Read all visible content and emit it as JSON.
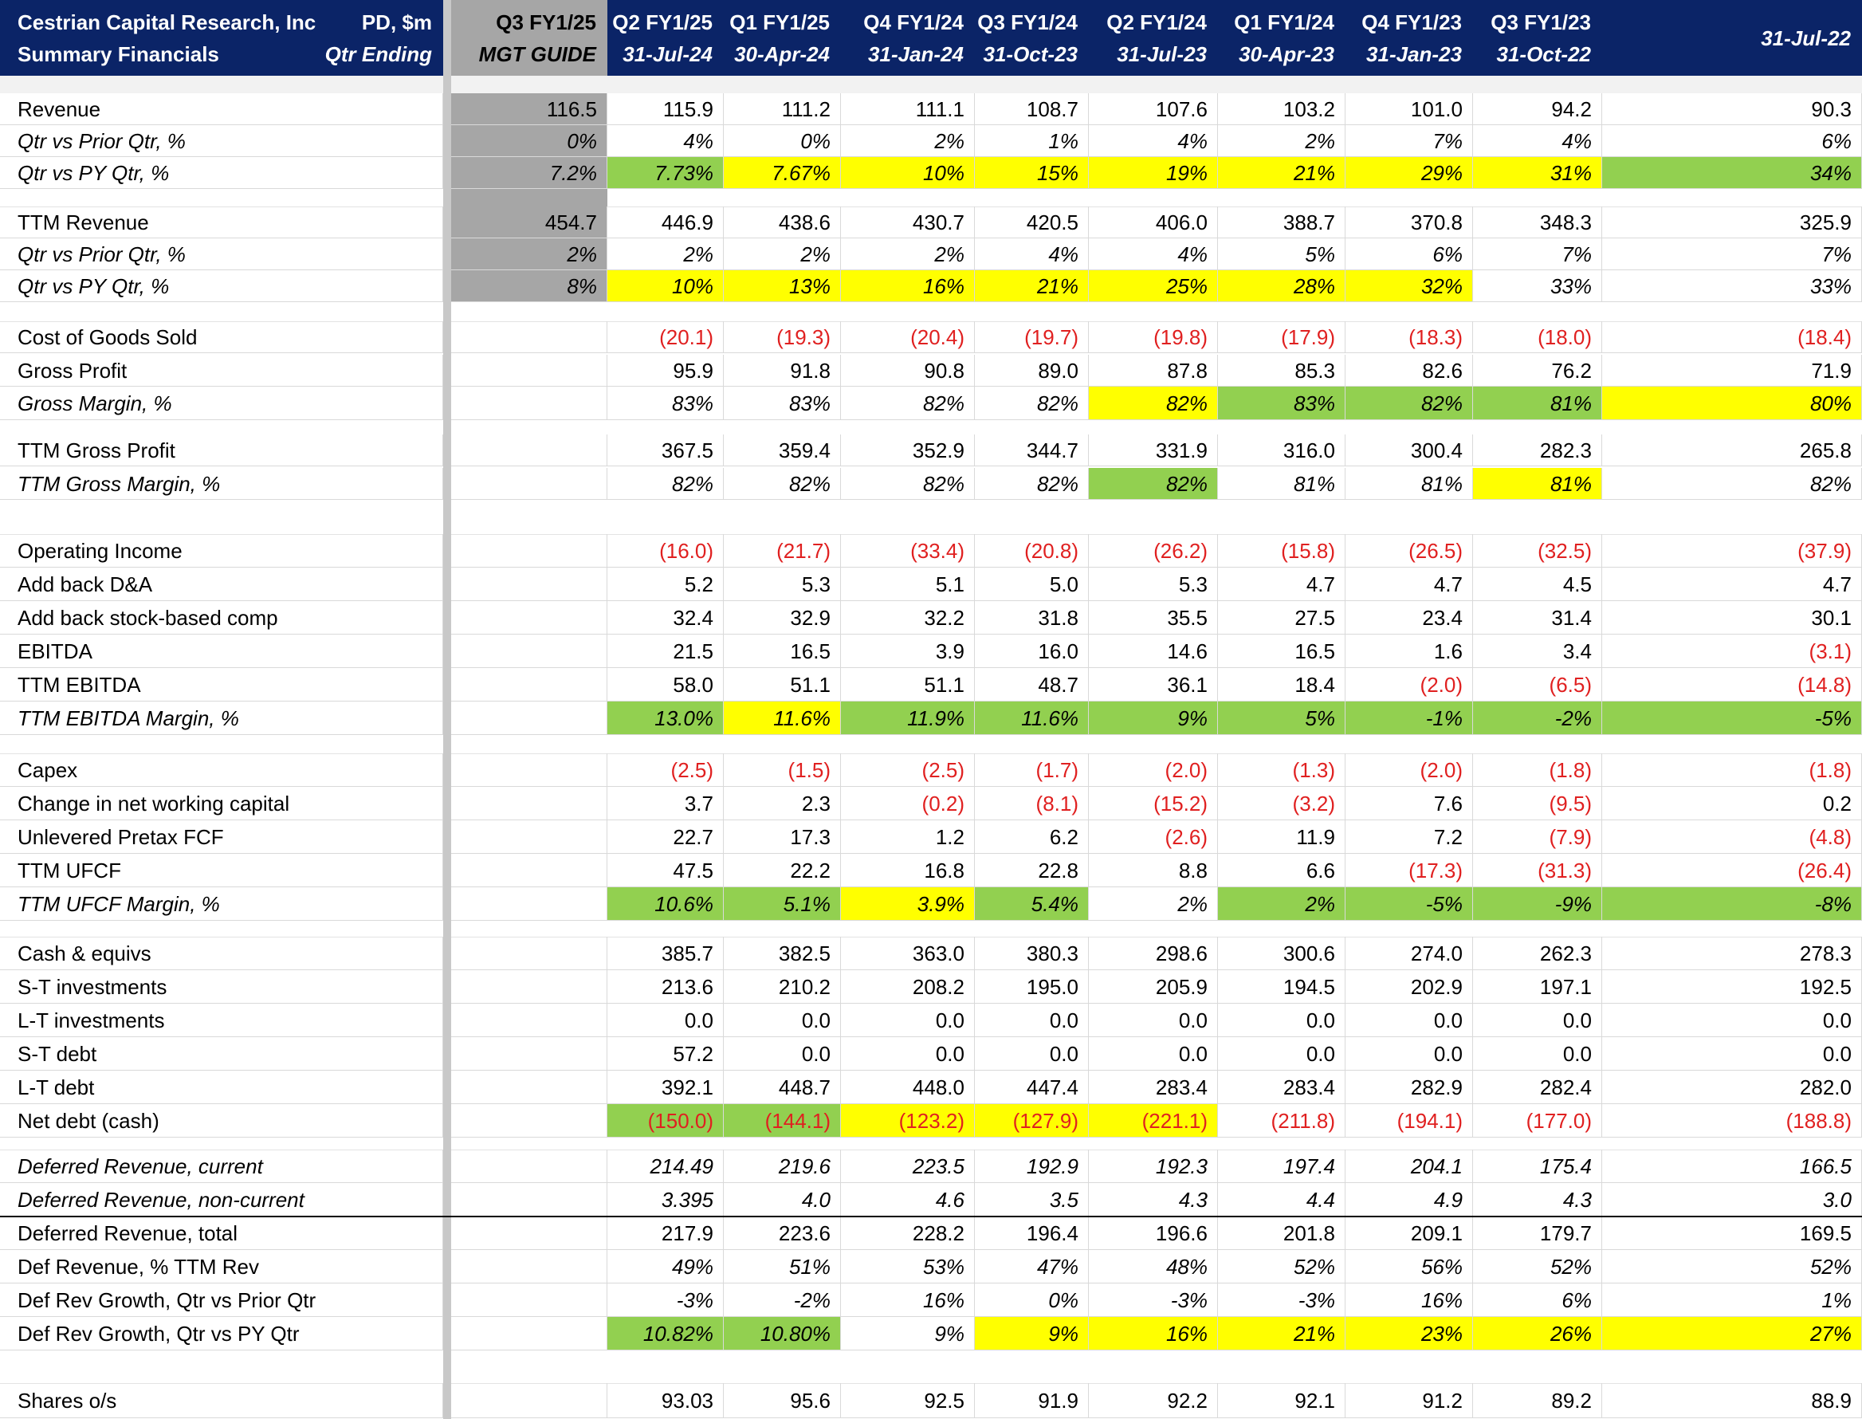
{
  "header": {
    "title_line1": "Cestrian Capital Research, Inc",
    "title_line2": "Summary Financials",
    "units_line1": "PD, $m",
    "units_line2": "Qtr Ending",
    "columns": [
      {
        "l1": "Q3 FY1/25",
        "l2": "MGT GUIDE"
      },
      {
        "l1": "Q2 FY1/25",
        "l2": "31-Jul-24"
      },
      {
        "l1": "Q1 FY1/25",
        "l2": "30-Apr-24"
      },
      {
        "l1": "Q4 FY1/24",
        "l2": "31-Jan-24"
      },
      {
        "l1": "Q3 FY1/24",
        "l2": "31-Oct-23"
      },
      {
        "l1": "Q2 FY1/24",
        "l2": "31-Jul-23"
      },
      {
        "l1": "Q1 FY1/24",
        "l2": "30-Apr-23"
      },
      {
        "l1": "Q4 FY1/23",
        "l2": "31-Jan-23"
      },
      {
        "l1": "Q3 FY1/23",
        "l2": "31-Oct-22"
      },
      {
        "l1": "",
        "l2": "31-Jul-22"
      }
    ]
  },
  "colors": {
    "header_bg": "#0b2467",
    "guide_bg": "#a6a6a6",
    "highlight_green": "#92d050",
    "highlight_yellow": "#ffff00",
    "negative_text": "#e02020"
  },
  "rows": [
    {
      "label": "Revenue",
      "italic": false,
      "values": [
        "116.5",
        "115.9",
        "111.2",
        "111.1",
        "108.7",
        "107.6",
        "103.2",
        "101.0",
        "94.2",
        "90.3"
      ],
      "bg": [
        "",
        "",
        "",
        "",
        "",
        "",
        "",
        "",
        "",
        ""
      ]
    },
    {
      "label": "Qtr vs Prior Qtr, %",
      "italic": true,
      "values": [
        "0%",
        "4%",
        "0%",
        "2%",
        "1%",
        "4%",
        "2%",
        "7%",
        "4%",
        "6%"
      ],
      "bg": [
        "",
        "",
        "",
        "",
        "",
        "",
        "",
        "",
        "",
        ""
      ]
    },
    {
      "label": "Qtr vs PY Qtr, %",
      "italic": true,
      "values": [
        "7.2%",
        "7.73%",
        "7.67%",
        "10%",
        "15%",
        "19%",
        "21%",
        "29%",
        "31%",
        "34%"
      ],
      "bg": [
        "",
        "g",
        "y",
        "y",
        "y",
        "y",
        "y",
        "y",
        "y",
        "g"
      ]
    },
    {
      "label": "TTM Revenue",
      "italic": false,
      "values": [
        "454.7",
        "446.9",
        "438.6",
        "430.7",
        "420.5",
        "406.0",
        "388.7",
        "370.8",
        "348.3",
        "325.9"
      ],
      "bg": [
        "",
        "",
        "",
        "",
        "",
        "",
        "",
        "",
        "",
        ""
      ]
    },
    {
      "label": "Qtr vs Prior Qtr, %",
      "italic": true,
      "values": [
        "2%",
        "2%",
        "2%",
        "2%",
        "4%",
        "4%",
        "5%",
        "6%",
        "7%",
        "7%"
      ],
      "bg": [
        "",
        "",
        "",
        "",
        "",
        "",
        "",
        "",
        "",
        ""
      ]
    },
    {
      "label": "Qtr vs PY Qtr, %",
      "italic": true,
      "values": [
        "8%",
        "10%",
        "13%",
        "16%",
        "21%",
        "25%",
        "28%",
        "32%",
        "33%",
        "33%"
      ],
      "bg": [
        "",
        "y",
        "y",
        "y",
        "y",
        "y",
        "y",
        "y",
        "",
        ""
      ]
    },
    {
      "label": "Cost of Goods Sold",
      "italic": false,
      "values": [
        "",
        "(20.1)",
        "(19.3)",
        "(20.4)",
        "(19.7)",
        "(19.8)",
        "(17.9)",
        "(18.3)",
        "(18.0)",
        "(18.4)"
      ],
      "bg": [
        "",
        "",
        "",
        "",
        "",
        "",
        "",
        "",
        "",
        ""
      ]
    },
    {
      "label": "Gross Profit",
      "italic": false,
      "values": [
        "",
        "95.9",
        "91.8",
        "90.8",
        "89.0",
        "87.8",
        "85.3",
        "82.6",
        "76.2",
        "71.9"
      ],
      "bg": [
        "",
        "",
        "",
        "",
        "",
        "",
        "",
        "",
        "",
        ""
      ]
    },
    {
      "label": "Gross Margin, %",
      "italic": true,
      "values": [
        "",
        "83%",
        "83%",
        "82%",
        "82%",
        "82%",
        "83%",
        "82%",
        "81%",
        "80%"
      ],
      "bg": [
        "",
        "",
        "",
        "",
        "",
        "y",
        "g",
        "g",
        "g",
        "y"
      ]
    },
    {
      "label": "TTM Gross Profit",
      "italic": false,
      "values": [
        "",
        "367.5",
        "359.4",
        "352.9",
        "344.7",
        "331.9",
        "316.0",
        "300.4",
        "282.3",
        "265.8"
      ],
      "bg": [
        "",
        "",
        "",
        "",
        "",
        "",
        "",
        "",
        "",
        ""
      ]
    },
    {
      "label": "TTM Gross Margin, %",
      "italic": true,
      "values": [
        "",
        "82%",
        "82%",
        "82%",
        "82%",
        "82%",
        "81%",
        "81%",
        "81%",
        "82%"
      ],
      "bg": [
        "",
        "",
        "",
        "",
        "",
        "g",
        "",
        "",
        "y",
        ""
      ]
    },
    {
      "label": "Operating Income",
      "italic": false,
      "values": [
        "",
        "(16.0)",
        "(21.7)",
        "(33.4)",
        "(20.8)",
        "(26.2)",
        "(15.8)",
        "(26.5)",
        "(32.5)",
        "(37.9)"
      ],
      "bg": [
        "",
        "",
        "",
        "",
        "",
        "",
        "",
        "",
        "",
        ""
      ]
    },
    {
      "label": "Add back D&A",
      "italic": false,
      "values": [
        "",
        "5.2",
        "5.3",
        "5.1",
        "5.0",
        "5.3",
        "4.7",
        "4.7",
        "4.5",
        "4.7"
      ],
      "bg": [
        "",
        "",
        "",
        "",
        "",
        "",
        "",
        "",
        "",
        ""
      ]
    },
    {
      "label": "Add back stock-based comp",
      "italic": false,
      "values": [
        "",
        "32.4",
        "32.9",
        "32.2",
        "31.8",
        "35.5",
        "27.5",
        "23.4",
        "31.4",
        "30.1"
      ],
      "bg": [
        "",
        "",
        "",
        "",
        "",
        "",
        "",
        "",
        "",
        ""
      ]
    },
    {
      "label": "EBITDA",
      "italic": false,
      "values": [
        "",
        "21.5",
        "16.5",
        "3.9",
        "16.0",
        "14.6",
        "16.5",
        "1.6",
        "3.4",
        "(3.1)"
      ],
      "bg": [
        "",
        "",
        "",
        "",
        "",
        "",
        "",
        "",
        "",
        ""
      ]
    },
    {
      "label": "TTM EBITDA",
      "italic": false,
      "values": [
        "",
        "58.0",
        "51.1",
        "51.1",
        "48.7",
        "36.1",
        "18.4",
        "(2.0)",
        "(6.5)",
        "(14.8)"
      ],
      "bg": [
        "",
        "",
        "",
        "",
        "",
        "",
        "",
        "",
        "",
        ""
      ]
    },
    {
      "label": "TTM EBITDA Margin, %",
      "italic": true,
      "values": [
        "",
        "13.0%",
        "11.6%",
        "11.9%",
        "11.6%",
        "9%",
        "5%",
        "-1%",
        "-2%",
        "-5%"
      ],
      "bg": [
        "",
        "g",
        "y",
        "g",
        "g",
        "g",
        "g",
        "g",
        "g",
        "g"
      ]
    },
    {
      "label": "Capex",
      "italic": false,
      "values": [
        "",
        "(2.5)",
        "(1.5)",
        "(2.5)",
        "(1.7)",
        "(2.0)",
        "(1.3)",
        "(2.0)",
        "(1.8)",
        "(1.8)"
      ],
      "bg": [
        "",
        "",
        "",
        "",
        "",
        "",
        "",
        "",
        "",
        ""
      ]
    },
    {
      "label": "Change in net working capital",
      "italic": false,
      "values": [
        "",
        "3.7",
        "2.3",
        "(0.2)",
        "(8.1)",
        "(15.2)",
        "(3.2)",
        "7.6",
        "(9.5)",
        "0.2"
      ],
      "bg": [
        "",
        "",
        "",
        "",
        "",
        "",
        "",
        "",
        "",
        ""
      ]
    },
    {
      "label": "Unlevered Pretax FCF",
      "italic": false,
      "values": [
        "",
        "22.7",
        "17.3",
        "1.2",
        "6.2",
        "(2.6)",
        "11.9",
        "7.2",
        "(7.9)",
        "(4.8)"
      ],
      "bg": [
        "",
        "",
        "",
        "",
        "",
        "",
        "",
        "",
        "",
        ""
      ]
    },
    {
      "label": "TTM UFCF",
      "italic": false,
      "values": [
        "",
        "47.5",
        "22.2",
        "16.8",
        "22.8",
        "8.8",
        "6.6",
        "(17.3)",
        "(31.3)",
        "(26.4)"
      ],
      "bg": [
        "",
        "",
        "",
        "",
        "",
        "",
        "",
        "",
        "",
        ""
      ]
    },
    {
      "label": "TTM UFCF Margin, %",
      "italic": true,
      "values": [
        "",
        "10.6%",
        "5.1%",
        "3.9%",
        "5.4%",
        "2%",
        "2%",
        "-5%",
        "-9%",
        "-8%"
      ],
      "bg": [
        "",
        "g",
        "g",
        "y",
        "g",
        "",
        "g",
        "g",
        "g",
        "g"
      ]
    },
    {
      "label": "Cash & equivs",
      "italic": false,
      "values": [
        "",
        "385.7",
        "382.5",
        "363.0",
        "380.3",
        "298.6",
        "300.6",
        "274.0",
        "262.3",
        "278.3"
      ],
      "bg": [
        "",
        "",
        "",
        "",
        "",
        "",
        "",
        "",
        "",
        ""
      ]
    },
    {
      "label": "S-T investments",
      "italic": false,
      "values": [
        "",
        "213.6",
        "210.2",
        "208.2",
        "195.0",
        "205.9",
        "194.5",
        "202.9",
        "197.1",
        "192.5"
      ],
      "bg": [
        "",
        "",
        "",
        "",
        "",
        "",
        "",
        "",
        "",
        ""
      ]
    },
    {
      "label": "L-T investments",
      "italic": false,
      "values": [
        "",
        "0.0",
        "0.0",
        "0.0",
        "0.0",
        "0.0",
        "0.0",
        "0.0",
        "0.0",
        "0.0"
      ],
      "bg": [
        "",
        "",
        "",
        "",
        "",
        "",
        "",
        "",
        "",
        ""
      ]
    },
    {
      "label": "S-T debt",
      "italic": false,
      "values": [
        "",
        "57.2",
        "0.0",
        "0.0",
        "0.0",
        "0.0",
        "0.0",
        "0.0",
        "0.0",
        "0.0"
      ],
      "bg": [
        "",
        "",
        "",
        "",
        "",
        "",
        "",
        "",
        "",
        ""
      ]
    },
    {
      "label": "L-T debt",
      "italic": false,
      "values": [
        "",
        "392.1",
        "448.7",
        "448.0",
        "447.4",
        "283.4",
        "283.4",
        "282.9",
        "282.4",
        "282.0"
      ],
      "bg": [
        "",
        "",
        "",
        "",
        "",
        "",
        "",
        "",
        "",
        ""
      ]
    },
    {
      "label": "Net debt (cash)",
      "italic": false,
      "values": [
        "",
        "(150.0)",
        "(144.1)",
        "(123.2)",
        "(127.9)",
        "(221.1)",
        "(211.8)",
        "(194.1)",
        "(177.0)",
        "(188.8)"
      ],
      "bg": [
        "",
        "g",
        "g",
        "y",
        "y",
        "y",
        "",
        "",
        "",
        ""
      ]
    },
    {
      "label": "Deferred Revenue, current",
      "italic": true,
      "values": [
        "",
        "214.49",
        "219.6",
        "223.5",
        "192.9",
        "192.3",
        "197.4",
        "204.1",
        "175.4",
        "166.5"
      ],
      "bg": [
        "",
        "",
        "",
        "",
        "",
        "",
        "",
        "",
        "",
        ""
      ]
    },
    {
      "label": "Deferred Revenue, non-current",
      "italic": true,
      "values": [
        "",
        "3.395",
        "4.0",
        "4.6",
        "3.5",
        "4.3",
        "4.4",
        "4.9",
        "4.3",
        "3.0"
      ],
      "bg": [
        "",
        "",
        "",
        "",
        "",
        "",
        "",
        "",
        "",
        ""
      ]
    },
    {
      "label": "Deferred Revenue, total",
      "italic": false,
      "values": [
        "",
        "217.9",
        "223.6",
        "228.2",
        "196.4",
        "196.6",
        "201.8",
        "209.1",
        "179.7",
        "169.5"
      ],
      "bg": [
        "",
        "",
        "",
        "",
        "",
        "",
        "",
        "",
        "",
        ""
      ]
    },
    {
      "label": "Def Revenue, % TTM Rev",
      "italic": false,
      "values": [
        "",
        "49%",
        "51%",
        "53%",
        "47%",
        "48%",
        "52%",
        "56%",
        "52%",
        "52%"
      ],
      "bg": [
        "",
        "",
        "",
        "",
        "",
        "",
        "",
        "",
        "",
        ""
      ],
      "italic_values": true
    },
    {
      "label": "Def Rev Growth, Qtr vs Prior Qtr",
      "italic": false,
      "values": [
        "",
        "-3%",
        "-2%",
        "16%",
        "0%",
        "-3%",
        "-3%",
        "16%",
        "6%",
        "1%"
      ],
      "bg": [
        "",
        "",
        "",
        "",
        "",
        "",
        "",
        "",
        "",
        ""
      ],
      "italic_values": true
    },
    {
      "label": "Def Rev Growth, Qtr vs PY Qtr",
      "italic": false,
      "values": [
        "",
        "10.82%",
        "10.80%",
        "9%",
        "9%",
        "16%",
        "21%",
        "23%",
        "26%",
        "27%"
      ],
      "bg": [
        "",
        "g",
        "g",
        "",
        "y",
        "y",
        "y",
        "y",
        "y",
        "y"
      ],
      "italic_values": true
    },
    {
      "label": "Shares o/s",
      "italic": false,
      "values": [
        "",
        "93.03",
        "95.6",
        "92.5",
        "91.9",
        "92.2",
        "92.1",
        "91.2",
        "89.2",
        "88.9"
      ],
      "bg": [
        "",
        "",
        "",
        "",
        "",
        "",
        "",
        "",
        "",
        ""
      ]
    }
  ]
}
